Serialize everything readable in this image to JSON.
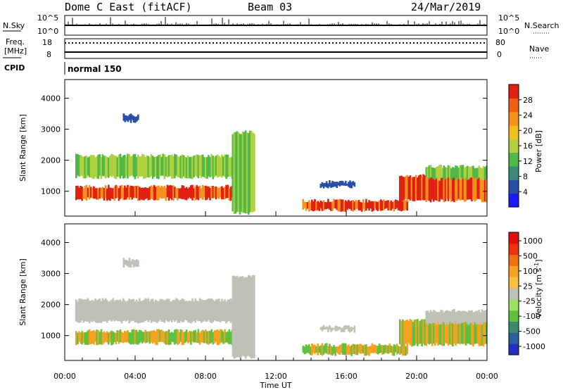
{
  "header": {
    "station": "Dome C East (fitACF)",
    "beam": "Beam 03",
    "date": "24/Mar/2019"
  },
  "noise": {
    "sky_label": "N.Sky",
    "sky_top": "10^5",
    "sky_bottom": "10^0",
    "search_label": "N.Search",
    "search_top": "10^5",
    "search_bottom": "10^0"
  },
  "freq": {
    "label_line1": "Freq.",
    "label_line2": "[MHz]",
    "top": "18",
    "bottom": "8",
    "nave_label": "Nave",
    "nave_top": "80",
    "nave_bottom": "0"
  },
  "cpid": {
    "label": "CPID",
    "value": "normal 150"
  },
  "chart_data": [
    {
      "type": "heatmap",
      "name": "power",
      "ylabel": "Slant Range [km]",
      "ylim": [
        200,
        4600
      ],
      "yticks": [
        "1000",
        "2000",
        "3000",
        "4000"
      ],
      "colorbar_label": "Power [dB]",
      "colorbar_ticks": [
        "4",
        "8",
        "12",
        "16",
        "20",
        "24",
        "28"
      ],
      "colors": [
        "#1a1aff",
        "#2a4da6",
        "#3b8a7a",
        "#50b848",
        "#b0d040",
        "#f0c020",
        "#f89020",
        "#f06010",
        "#e02010"
      ]
    },
    {
      "type": "heatmap",
      "name": "velocity",
      "ylabel": "Slant Range [km]",
      "ylim": [
        200,
        4600
      ],
      "yticks": [
        "1000",
        "2000",
        "3000",
        "4000"
      ],
      "colorbar_label": "Velocity [m s",
      "colorbar_unit_exp": "-1",
      "colorbar_ticks": [
        "1000",
        "500",
        "100",
        "25",
        "-25",
        "-100",
        "-500",
        "-1000"
      ],
      "colors": [
        "#2030c0",
        "#2a60a0",
        "#3a8a70",
        "#60c040",
        "#a0e060",
        "#c0c0b8",
        "#f8c040",
        "#f8a020",
        "#f07010",
        "#f03010",
        "#e01010"
      ],
      "xlabel": "Time UT",
      "xticks": [
        "00:00",
        "04:00",
        "08:00",
        "12:00",
        "16:00",
        "20:00",
        "00:00"
      ]
    }
  ]
}
